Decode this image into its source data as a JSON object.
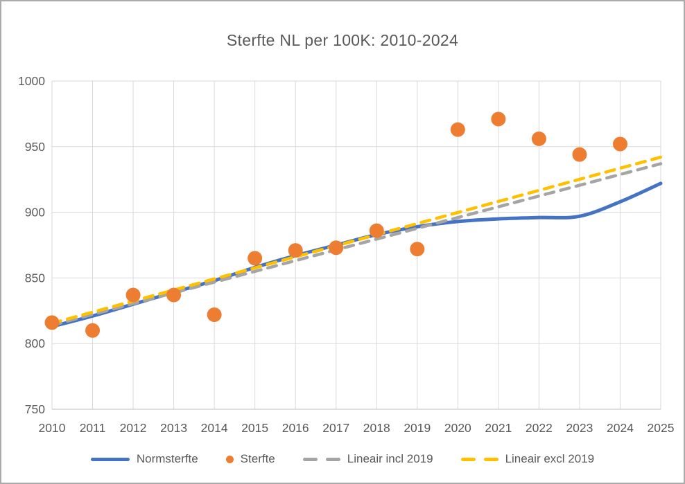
{
  "window": {
    "border_color": "#ababab",
    "background": "#ffffff"
  },
  "chart": {
    "title": "Sterfte NL per 100K: 2010-2024"
  },
  "colors": {
    "normsterfte_blue": "#4472C4",
    "sterfte_orange": "#ED7D31",
    "lineair_incl_gray": "#A5A5A5",
    "lineair_excl_yellow": "#FFC000",
    "gridline": "#D9D9D9",
    "axis_line": "#BFBFBF",
    "axis_text": "#595959",
    "title_text": "#595959"
  },
  "legend": {
    "items": [
      {
        "label": "Normsterfte",
        "marker": "line",
        "color": "#4472C4"
      },
      {
        "label": "Sterfte",
        "marker": "dot",
        "color": "#ED7D31"
      },
      {
        "label": "Lineair incl 2019",
        "marker": "dashes",
        "color": "#A5A5A5"
      },
      {
        "label": "Lineair excl 2019",
        "marker": "dashes",
        "color": "#FFC000"
      }
    ]
  },
  "chart_data": {
    "type": "line",
    "title": "Sterfte NL per 100K: 2010-2024",
    "xlabel": "",
    "ylabel": "",
    "xlim": [
      2010,
      2025
    ],
    "ylim": [
      750,
      1000
    ],
    "x_ticks": [
      2010,
      2011,
      2012,
      2013,
      2014,
      2015,
      2016,
      2017,
      2018,
      2019,
      2020,
      2021,
      2022,
      2023,
      2024,
      2025
    ],
    "y_ticks": [
      750,
      800,
      850,
      900,
      950,
      1000
    ],
    "grid": true,
    "legend_position": "bottom",
    "series": [
      {
        "name": "Normsterfte",
        "type": "line",
        "color": "#4472C4",
        "x": [
          2010,
          2011,
          2012,
          2013,
          2014,
          2015,
          2016,
          2017,
          2018,
          2019,
          2020,
          2021,
          2022,
          2023,
          2024,
          2025
        ],
        "values": [
          813,
          821,
          830,
          839,
          848,
          858,
          867,
          875,
          883,
          889,
          893,
          895,
          896,
          897,
          908,
          922
        ]
      },
      {
        "name": "Sterfte",
        "type": "scatter",
        "color": "#ED7D31",
        "x": [
          2010,
          2011,
          2012,
          2013,
          2014,
          2015,
          2016,
          2017,
          2018,
          2019,
          2020,
          2021,
          2022,
          2023,
          2024
        ],
        "values": [
          816,
          810,
          837,
          837,
          822,
          865,
          871,
          873,
          886,
          872,
          963,
          971,
          956,
          944,
          952
        ]
      },
      {
        "name": "Lineair incl 2019",
        "type": "dashed-line",
        "color": "#A5A5A5",
        "x": [
          2010,
          2025
        ],
        "values": [
          814,
          937
        ]
      },
      {
        "name": "Lineair excl 2019",
        "type": "dashed-line",
        "color": "#FFC000",
        "x": [
          2010,
          2025
        ],
        "values": [
          815.5,
          942
        ]
      }
    ]
  }
}
